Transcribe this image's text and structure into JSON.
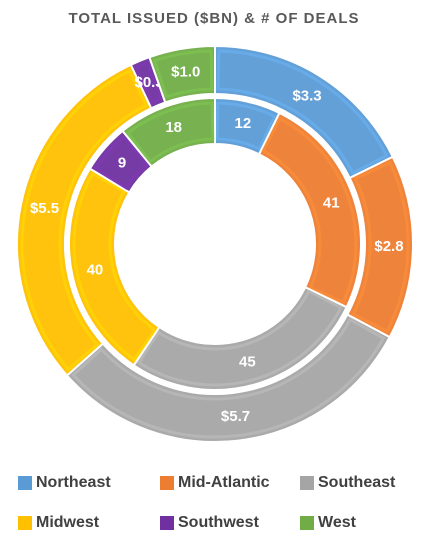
{
  "chart_data": {
    "type": "doughnut",
    "title": "TOTAL ISSUED ($BN) & # OF DEALS",
    "categories": [
      "Northeast",
      "Mid-Atlantic",
      "Southeast",
      "Midwest",
      "Southwest",
      "West"
    ],
    "colors": [
      "#5b9bd5",
      "#ed7d31",
      "#a5a5a5",
      "#ffc000",
      "#7030a0",
      "#70ad47"
    ],
    "series": [
      {
        "values": [
          3.3,
          2.8,
          5.7,
          5.5,
          0.3,
          1.0
        ],
        "value_labels": [
          "$3.3",
          "$2.8",
          "$5.7",
          "$5.5",
          "$0.3",
          "$1.0"
        ]
      },
      {
        "values": [
          12,
          41,
          45,
          40,
          9,
          18
        ]
      }
    ],
    "legend": "bottom"
  }
}
